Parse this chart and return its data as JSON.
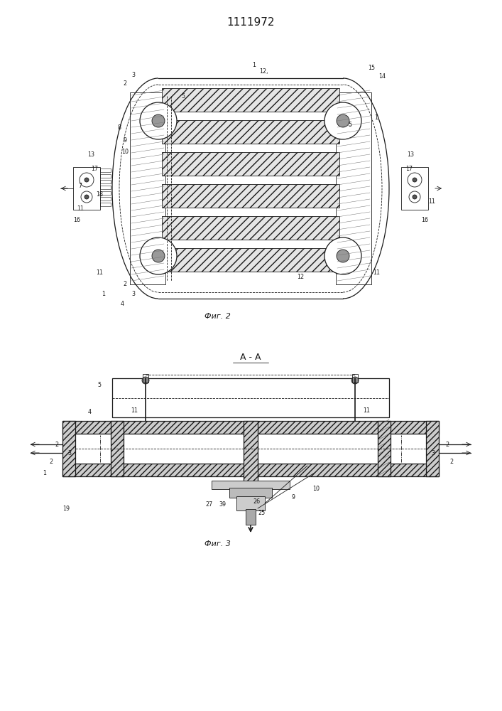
{
  "title": "1111972",
  "fig2_label": "Фиг. 2",
  "fig3_label": "Фиг. 3",
  "aa_label": "А - А",
  "bg_color": "#ffffff",
  "line_color": "#1a1a1a",
  "page_width": 7.07,
  "page_height": 10.0
}
